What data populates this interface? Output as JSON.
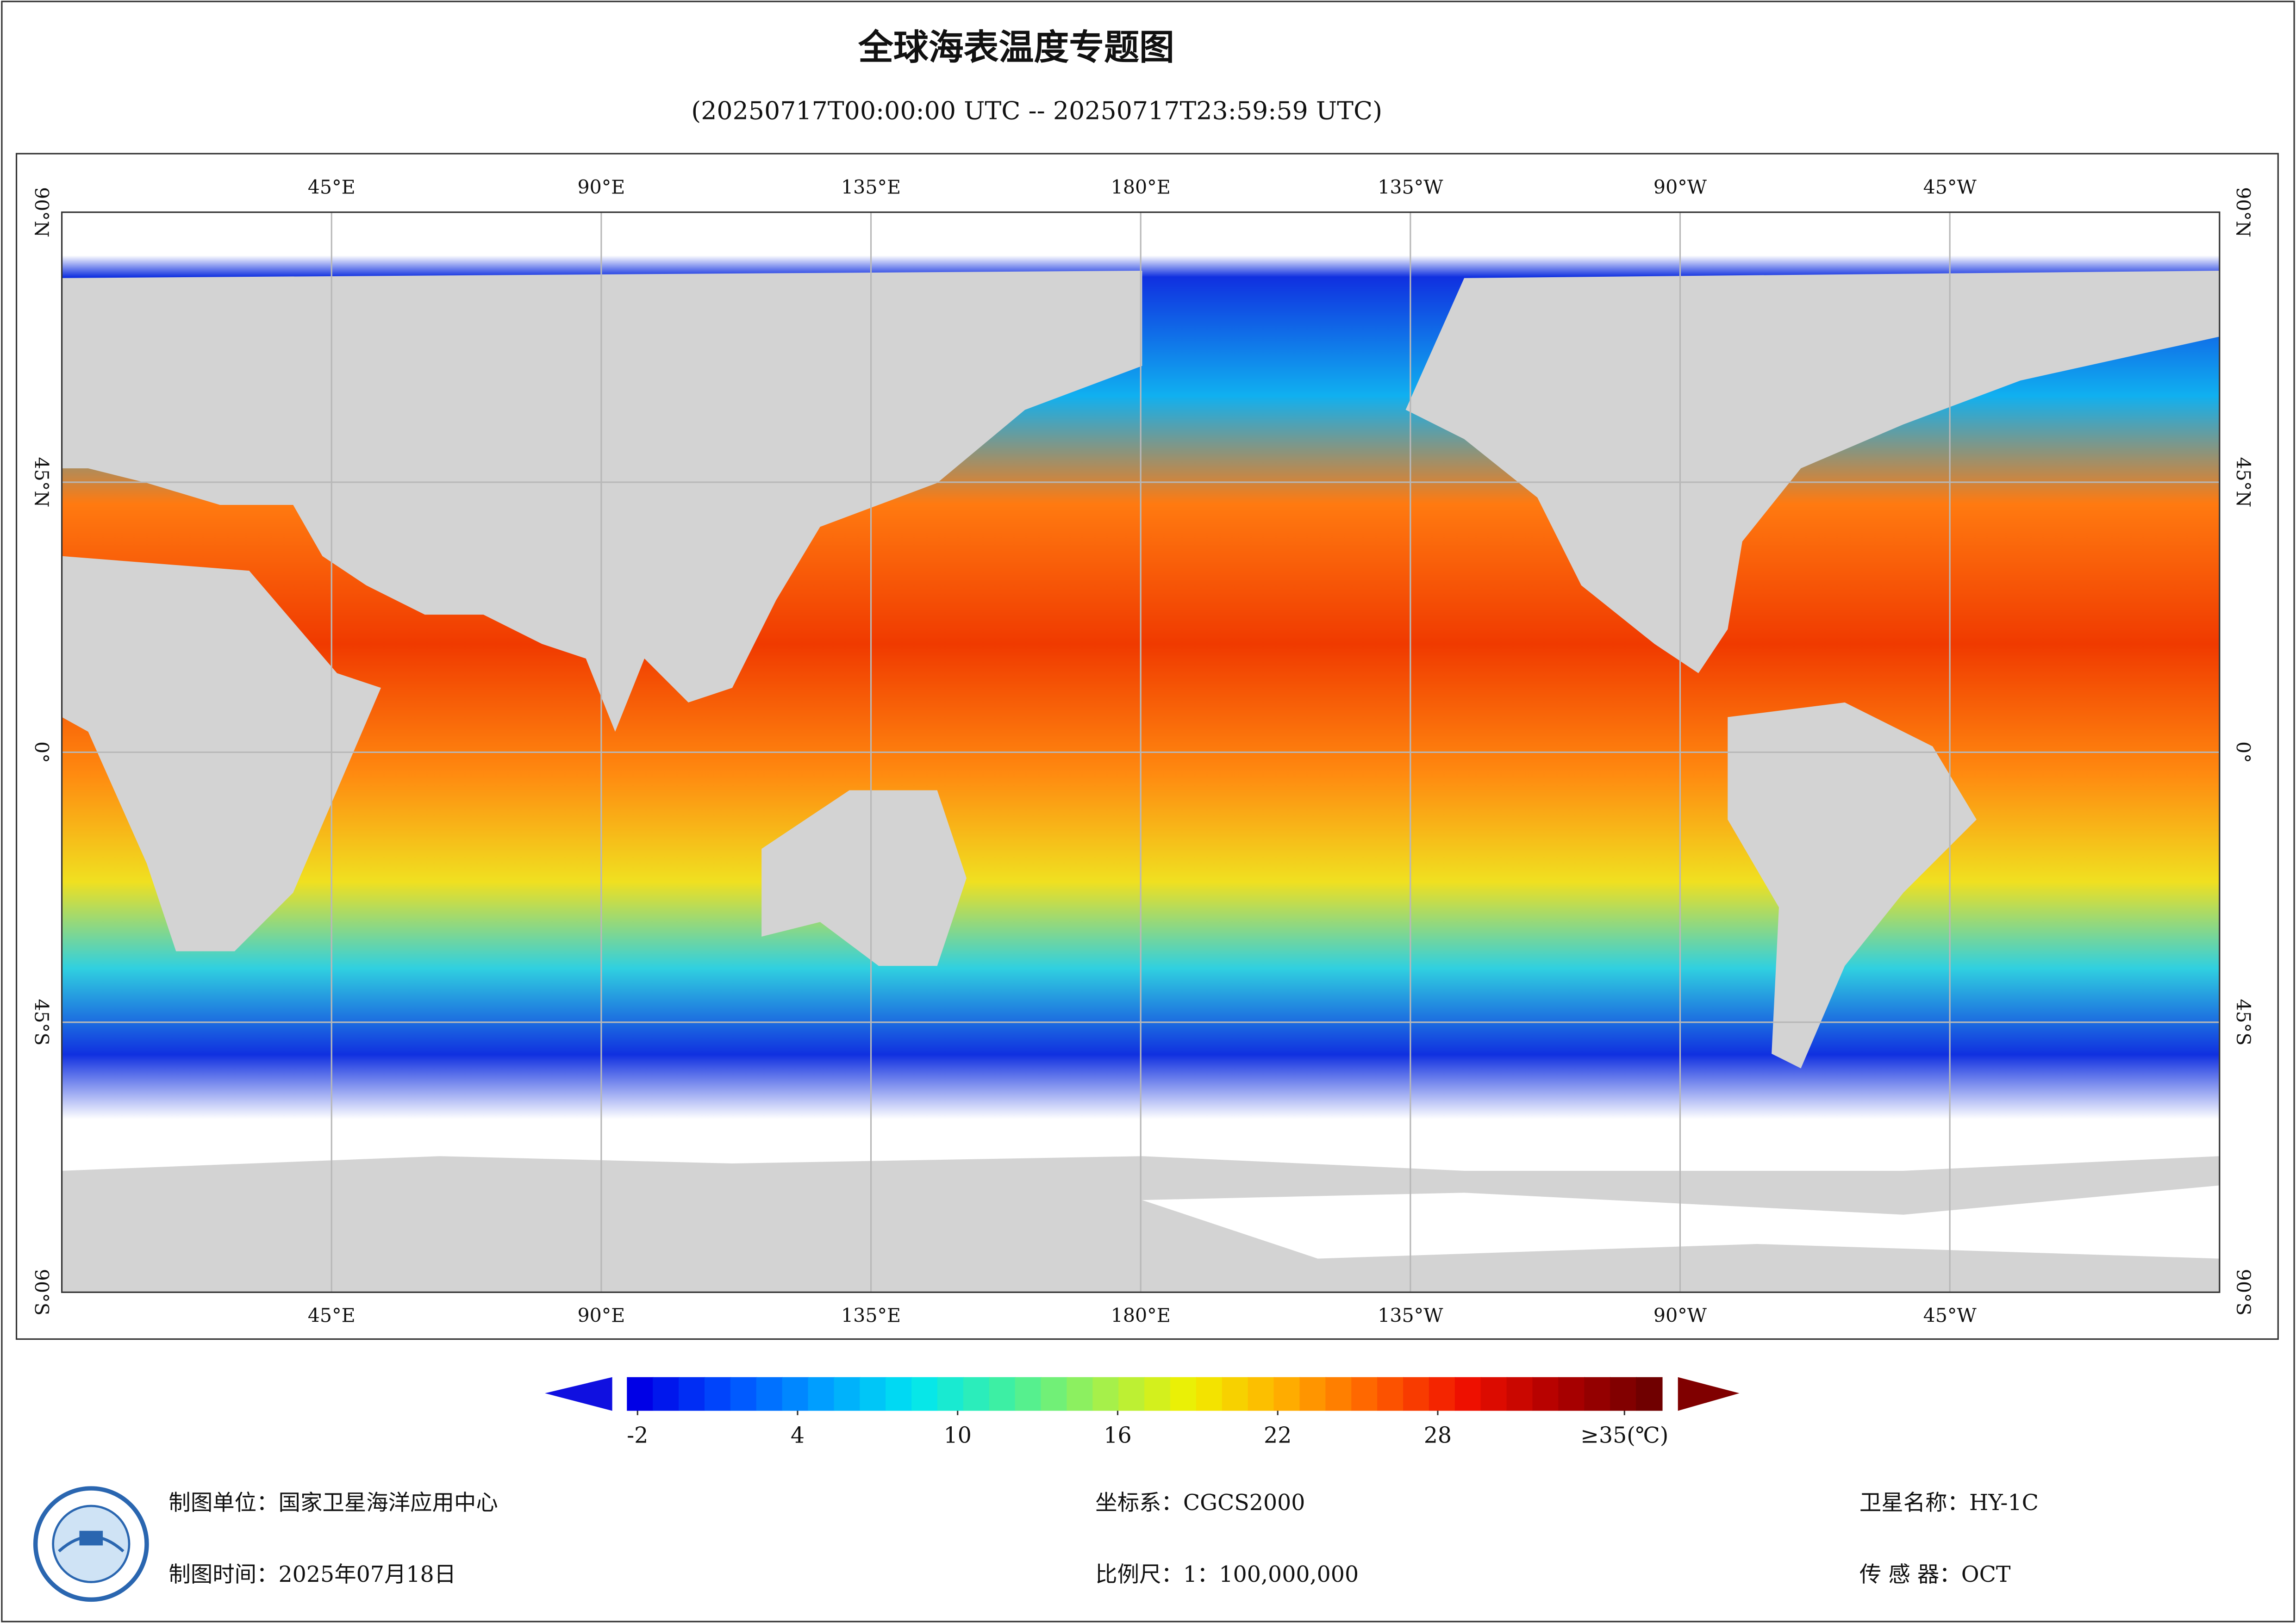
{
  "title": "全球海表温度专题图",
  "subtitle": "(20250717T00:00:00 UTC -- 20250717T23:59:59 UTC)",
  "map": {
    "lon_range": [
      0,
      360
    ],
    "lat_range": [
      -90,
      90
    ],
    "grid": true,
    "lon_ticks": [
      {
        "value": 45,
        "label": "45°E"
      },
      {
        "value": 90,
        "label": "90°E"
      },
      {
        "value": 135,
        "label": "135°E"
      },
      {
        "value": 180,
        "label": "180°E"
      },
      {
        "value": 225,
        "label": "135°W"
      },
      {
        "value": 270,
        "label": "90°W"
      },
      {
        "value": 315,
        "label": "45°W"
      }
    ],
    "lat_ticks": [
      {
        "value": 90,
        "label": "90°N"
      },
      {
        "value": 45,
        "label": "45°N"
      },
      {
        "value": 0,
        "label": "0°"
      },
      {
        "value": -45,
        "label": "45°S"
      },
      {
        "value": -90,
        "label": "90°S"
      }
    ]
  },
  "colorbar": {
    "range": [
      -2.4,
      36.4
    ],
    "colors": [
      "#0000e6",
      "#0050ff",
      "#00a0ff",
      "#00e6f0",
      "#40f0a0",
      "#a0f050",
      "#f0f000",
      "#ffb000",
      "#ff6000",
      "#f01000",
      "#b00000",
      "#700000"
    ],
    "ticks": [
      -2,
      4,
      10,
      16,
      22,
      28,
      {
        "value": 35,
        "label": "≥35(℃)"
      }
    ]
  },
  "footer": {
    "unit": "制图单位：国家卫星海洋应用中心",
    "time": "制图时间：2025年07月18日",
    "crs": "坐标系：CGCS2000",
    "scale": "比例尺：1：100,000,000",
    "satellite": "卫星名称：HY-1C",
    "sensor": "传 感 器：OCT"
  }
}
